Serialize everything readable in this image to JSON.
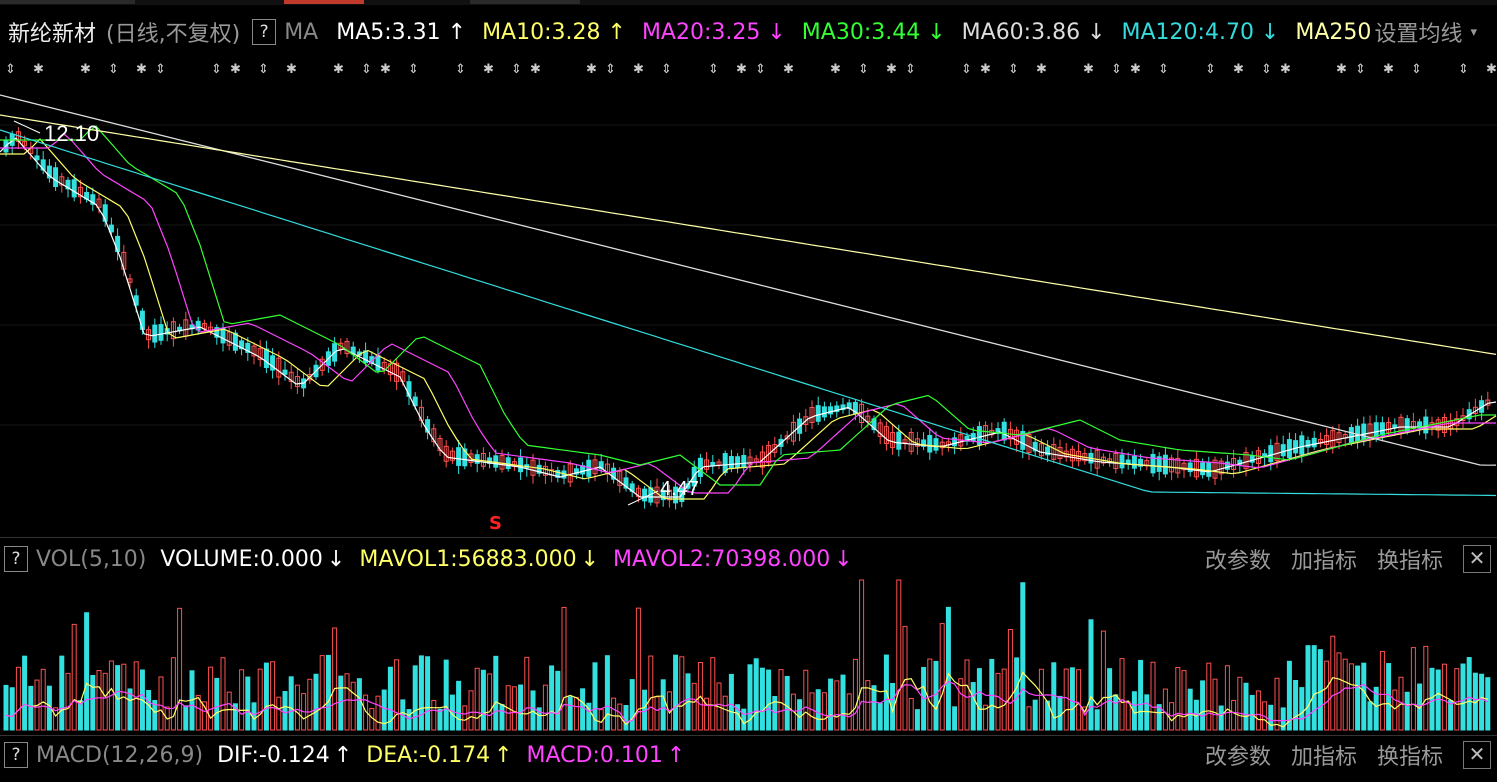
{
  "stock": {
    "name": "新纶新材",
    "mode": "(日线,不复权)"
  },
  "ma_bar": {
    "help": "?",
    "label": "MA",
    "items": [
      {
        "text": "MA5:3.31",
        "arrow": "↑",
        "color": "#ffffff"
      },
      {
        "text": "MA10:3.28",
        "arrow": "↑",
        "color": "#ffff66"
      },
      {
        "text": "MA20:3.25",
        "arrow": "↓",
        "color": "#ff44ff"
      },
      {
        "text": "MA30:3.44",
        "arrow": "↓",
        "color": "#33ff33"
      },
      {
        "text": "MA60:3.86",
        "arrow": "↓",
        "color": "#dddddd"
      },
      {
        "text": "MA120:4.70",
        "arrow": "↓",
        "color": "#33dddd"
      },
      {
        "text": "MA250",
        "arrow": "",
        "color": "#ffffaa"
      }
    ],
    "settings": "设置均线"
  },
  "price_chart": {
    "high_label": "12.10",
    "low_label": "4.47",
    "signal": "S"
  },
  "vol_bar": {
    "help": "?",
    "title": "VOL(5,10)",
    "volume": "VOLUME:0.000",
    "volume_arrow": "↓",
    "mavol1": "MAVOL1:56883.000",
    "mavol1_arrow": "↓",
    "mavol2": "MAVOL2:70398.000",
    "mavol2_arrow": "↓",
    "tools": [
      "改参数",
      "加指标",
      "换指标"
    ],
    "close": "✕"
  },
  "macd_bar": {
    "help": "?",
    "title": "MACD(12,26,9)",
    "dif": "DIF:-0.124",
    "dif_arrow": "↑",
    "dea": "DEA:-0.174",
    "dea_arrow": "↑",
    "macd": "MACD:0.101",
    "macd_arrow": "↑",
    "tools": [
      "改参数",
      "加指标",
      "换指标"
    ],
    "close": "✕"
  },
  "colors": {
    "up": "#ff5050",
    "down": "#33e0e0",
    "ma5": "#ffffff",
    "ma10": "#ffff66",
    "ma20": "#ff44ff",
    "ma30": "#33ff33",
    "ma60": "#dddddd",
    "ma120": "#33dddd",
    "ma250": "#ffffaa"
  }
}
